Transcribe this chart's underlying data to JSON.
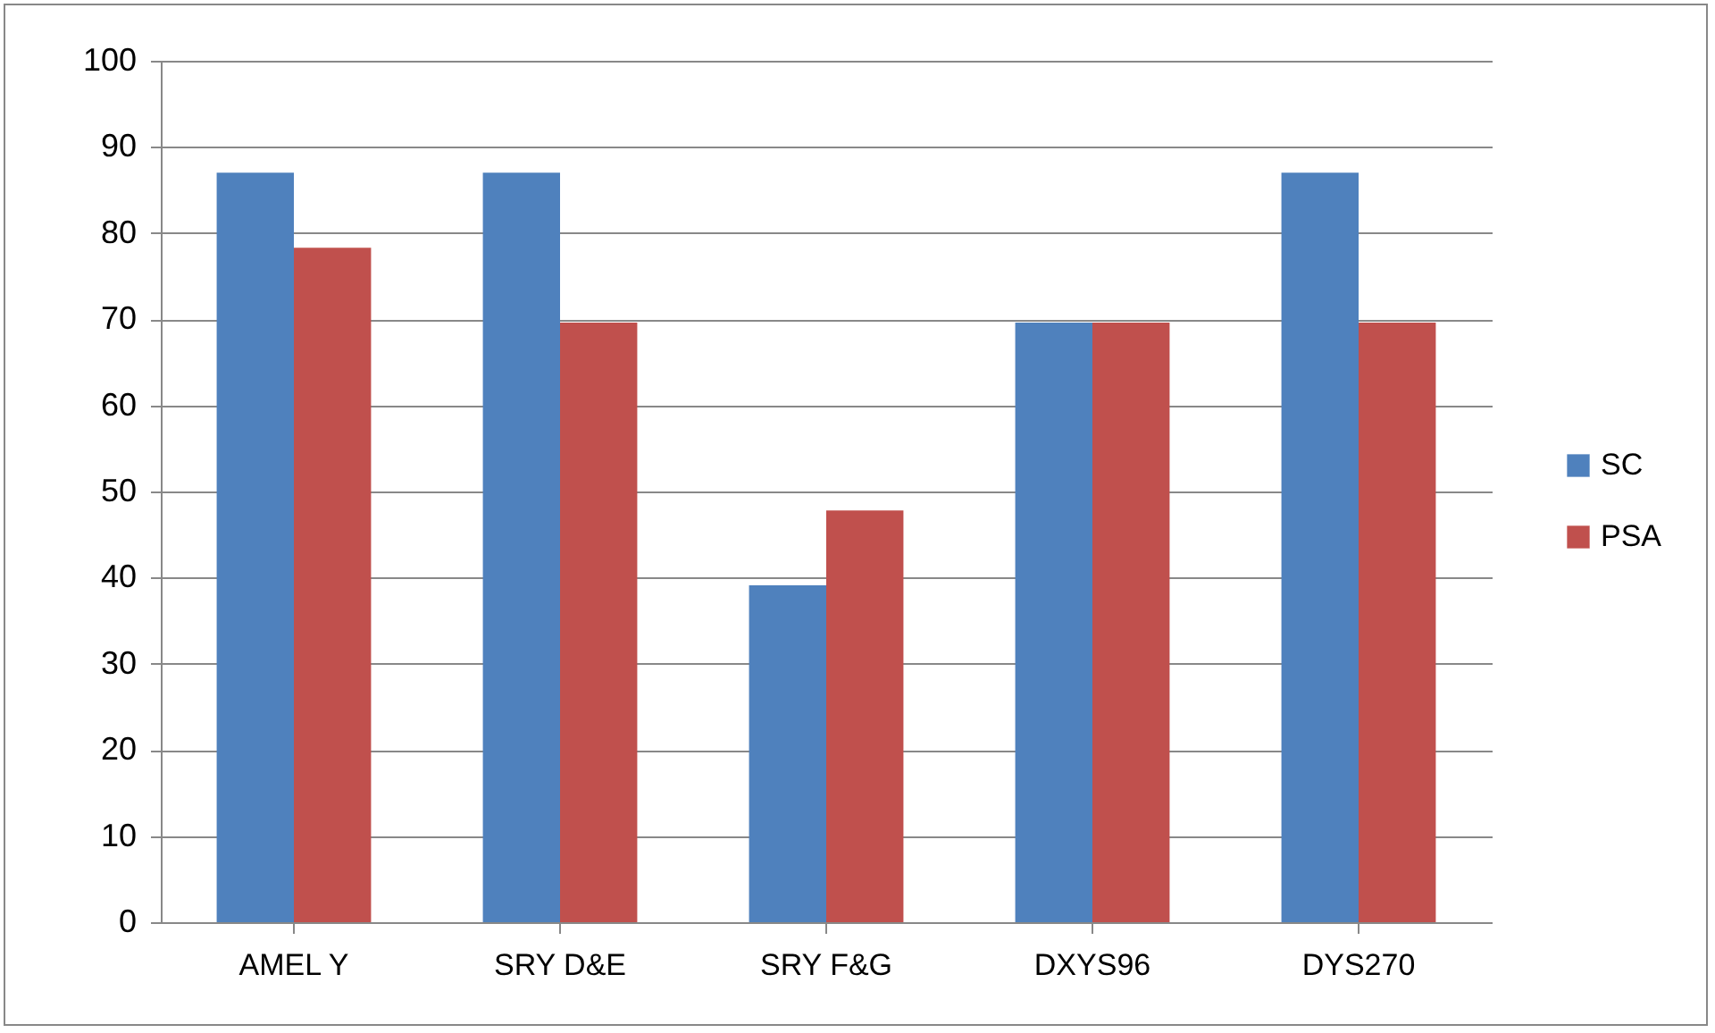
{
  "chart_data": {
    "type": "bar",
    "categories": [
      "AMEL Y",
      "SRY D&E",
      "SRY F&G",
      "DXYS96",
      "DYS270"
    ],
    "series": [
      {
        "name": "SC",
        "color": "#4f81bd",
        "values": [
          87,
          87,
          39.1,
          69.6,
          87
        ]
      },
      {
        "name": "PSA",
        "color": "#c0504d",
        "values": [
          78.3,
          69.6,
          47.8,
          69.6,
          69.6
        ]
      }
    ],
    "ylim": [
      0,
      100
    ],
    "yticks": [
      0,
      10,
      20,
      30,
      40,
      50,
      60,
      70,
      80,
      90,
      100
    ],
    "grid": "y",
    "legend": "right"
  }
}
